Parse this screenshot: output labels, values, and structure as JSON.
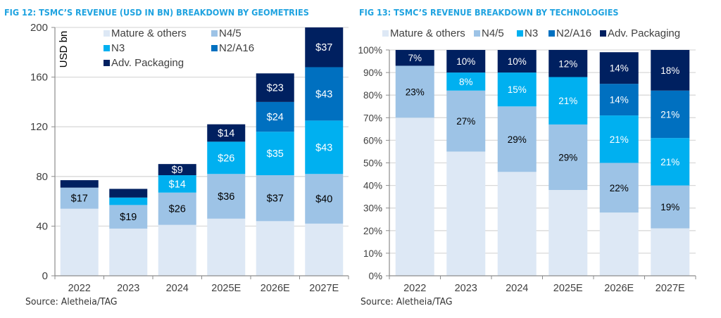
{
  "figures": [
    {
      "title": "FIG 12: TSMC’S REVENUE (USD IN BN) BREAKDOWN BY GEOMETRIES",
      "source": "Source: Aletheia/TAG"
    },
    {
      "title": "FIG 13: TSMC’S REVENUE BREAKDOWN BY TECHNOLOGIES",
      "source": "Source: Aletheia/TAG"
    }
  ],
  "colors": {
    "Mature & others": "#dde8f5",
    "N4/5": "#9dc3e6",
    "N3": "#00b0f0",
    "N2/A16": "#0070c0",
    "Adv. Packaging": "#002060"
  },
  "chart_data": [
    {
      "type": "bar",
      "stacked": true,
      "title": "FIG 12: TSMC’S REVENUE (USD IN BN) BREAKDOWN BY GEOMETRIES",
      "xlabel": "",
      "ylabel": "USD bn",
      "ylim": [
        0,
        200
      ],
      "yticks": [
        0,
        40,
        80,
        120,
        160,
        200
      ],
      "ytick_labels": [
        "0",
        "40",
        "80",
        "120",
        "160",
        "200"
      ],
      "grid": true,
      "legend": "top-left",
      "categories": [
        "2022",
        "2023",
        "2024",
        "2025E",
        "2026E",
        "2027E"
      ],
      "series": [
        {
          "name": "Mature & others",
          "values": [
            54,
            38,
            41,
            46,
            44,
            42
          ],
          "labels": [
            null,
            null,
            null,
            null,
            null,
            null
          ]
        },
        {
          "name": "N4/5",
          "values": [
            17,
            19,
            26,
            36,
            37,
            40
          ],
          "labels": [
            "$17",
            "$19",
            "$26",
            "$36",
            "$37",
            "$40"
          ]
        },
        {
          "name": "N3",
          "values": [
            0,
            6,
            14,
            26,
            35,
            43
          ],
          "labels": [
            null,
            null,
            "$14",
            "$26",
            "$35",
            "$43"
          ]
        },
        {
          "name": "N2/A16",
          "values": [
            0,
            0,
            0,
            0,
            24,
            43
          ],
          "labels": [
            null,
            null,
            null,
            null,
            "$24",
            "$43"
          ]
        },
        {
          "name": "Adv. Packaging",
          "values": [
            6,
            7,
            9,
            14,
            23,
            37
          ],
          "labels": [
            null,
            null,
            "$9",
            "$14",
            "$23",
            "$37"
          ]
        }
      ]
    },
    {
      "type": "bar",
      "stacked": true,
      "percent": true,
      "title": "FIG 13: TSMC’S REVENUE BREAKDOWN BY TECHNOLOGIES",
      "xlabel": "",
      "ylabel": "",
      "ylim": [
        0,
        100
      ],
      "yticks": [
        0,
        10,
        20,
        30,
        40,
        50,
        60,
        70,
        80,
        90,
        100
      ],
      "ytick_labels": [
        "0%",
        "10%",
        "20%",
        "30%",
        "40%",
        "50%",
        "60%",
        "70%",
        "80%",
        "90%",
        "100%"
      ],
      "grid": true,
      "legend": "top",
      "categories": [
        "2022",
        "2023",
        "2024",
        "2025E",
        "2026E",
        "2027E"
      ],
      "series": [
        {
          "name": "Mature & others",
          "values": [
            70,
            55,
            46,
            38,
            28,
            21
          ],
          "labels": [
            null,
            null,
            null,
            null,
            null,
            null
          ]
        },
        {
          "name": "N4/5",
          "values": [
            23,
            27,
            29,
            29,
            22,
            19
          ],
          "labels": [
            "23%",
            "27%",
            "29%",
            "29%",
            "22%",
            "19%"
          ]
        },
        {
          "name": "N3",
          "values": [
            0,
            8,
            15,
            21,
            21,
            21
          ],
          "labels": [
            null,
            "8%",
            "15%",
            "21%",
            "21%",
            "21%"
          ]
        },
        {
          "name": "N2/A16",
          "values": [
            0,
            0,
            0,
            0,
            14,
            21
          ],
          "labels": [
            null,
            null,
            null,
            null,
            "14%",
            "21%"
          ]
        },
        {
          "name": "Adv. Packaging",
          "values": [
            7,
            10,
            10,
            12,
            14,
            18
          ],
          "labels": [
            "7%",
            "10%",
            "10%",
            "12%",
            "14%",
            "18%"
          ]
        }
      ]
    }
  ]
}
